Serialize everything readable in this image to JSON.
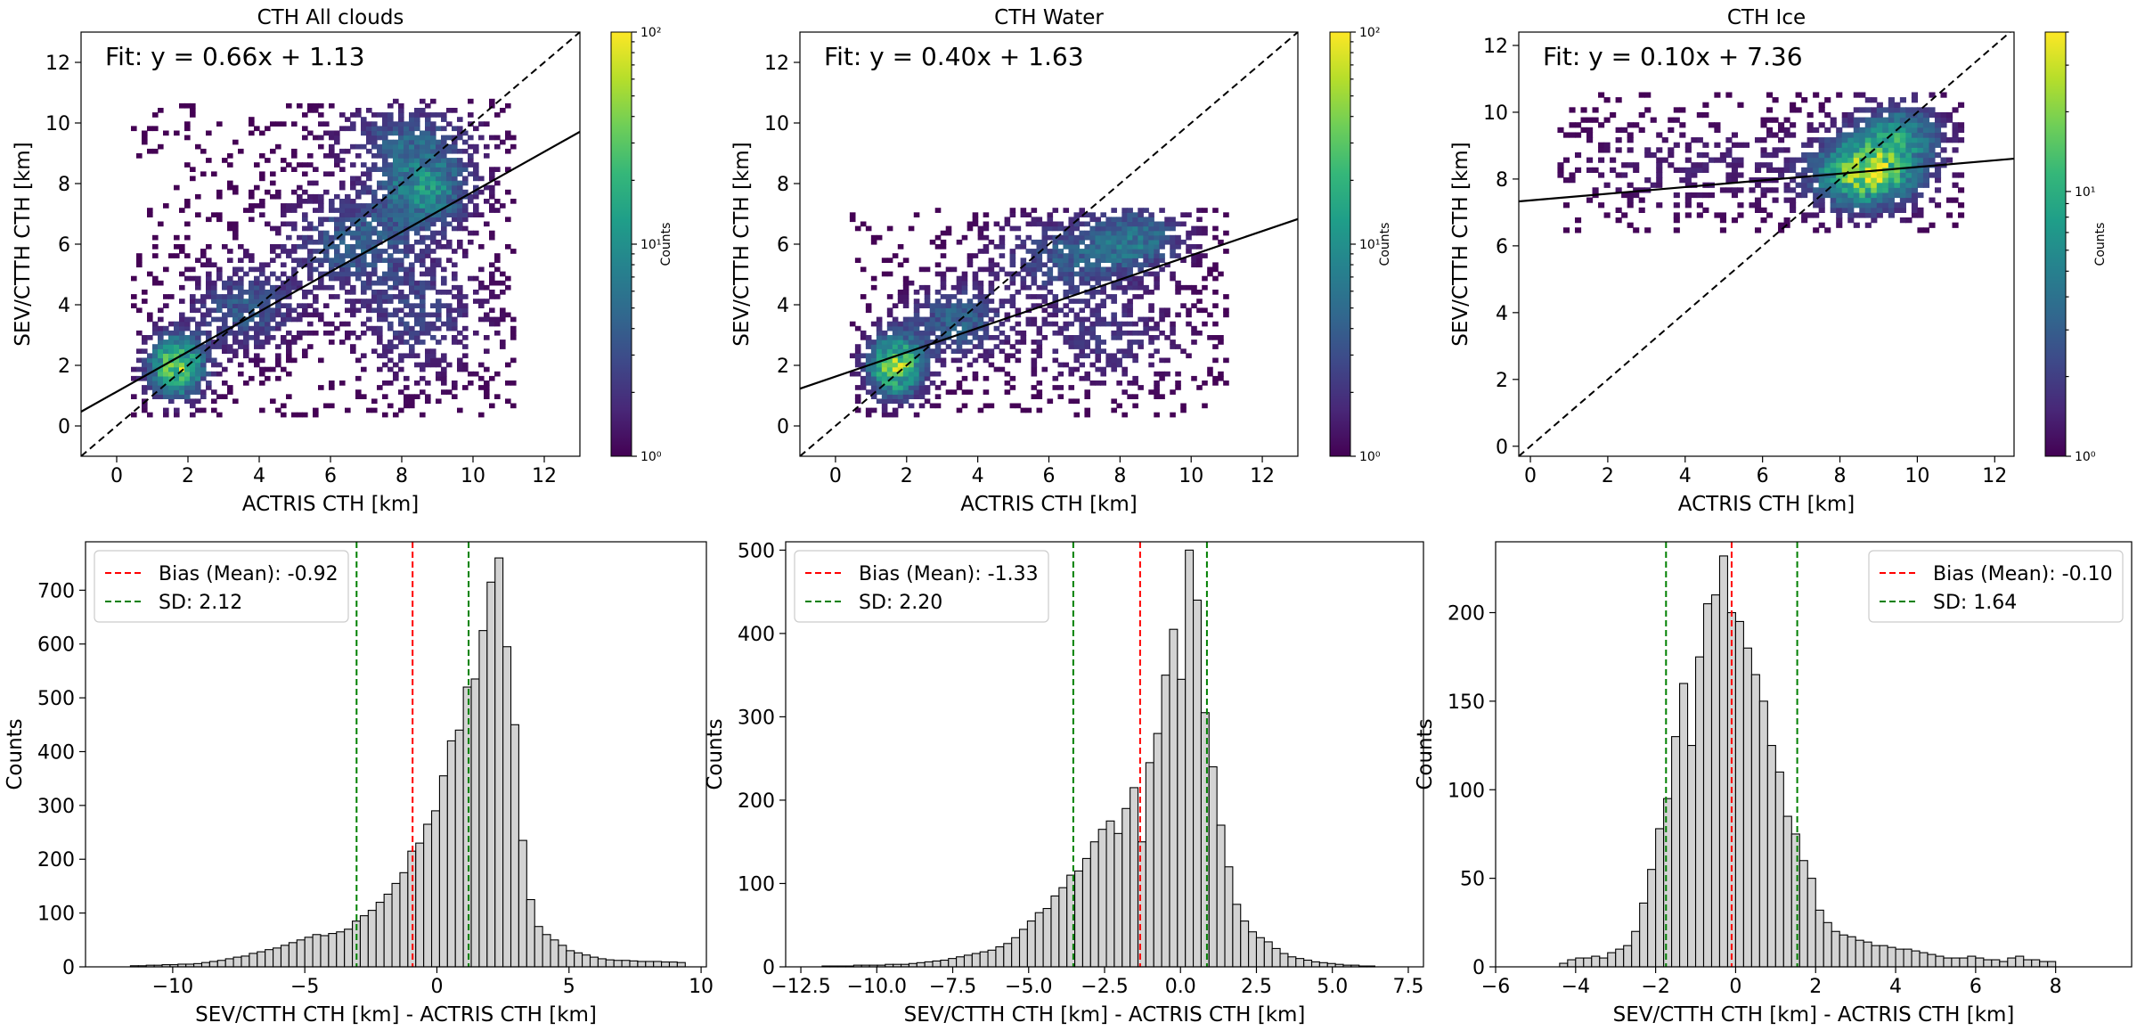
{
  "colormap": [
    "#440154",
    "#482878",
    "#3e4989",
    "#31688e",
    "#26828e",
    "#1f9e89",
    "#35b779",
    "#6ece58",
    "#b5de2b",
    "#fde725"
  ],
  "chart_data": [
    {
      "type": "heatmap",
      "title": "CTH All clouds",
      "xlabel": "ACTRIS CTH [km]",
      "ylabel": "SEV/CTTH CTH [km]",
      "xlim": [
        -1,
        13
      ],
      "ylim": [
        -1,
        13
      ],
      "xticks": [
        0,
        2,
        4,
        6,
        8,
        10,
        12
      ],
      "yticks": [
        0,
        2,
        4,
        6,
        8,
        10,
        12
      ],
      "fit_text": "Fit: y = 0.66x + 1.13",
      "fit": {
        "slope": 0.66,
        "intercept": 1.13
      },
      "one_to_one_line": true,
      "colorbar": {
        "label": "Counts",
        "scale": "log",
        "range": [
          1,
          100
        ],
        "tick_labels": [
          "10⁰",
          "10¹",
          "10²"
        ]
      },
      "density_clusters": [
        {
          "x": 1.6,
          "y": 1.9,
          "sx": 0.55,
          "sy": 0.7,
          "w": 1.0
        },
        {
          "x": 3.5,
          "y": 3.8,
          "sx": 1.0,
          "sy": 0.9,
          "w": 0.35
        },
        {
          "x": 6.5,
          "y": 6.0,
          "sx": 1.3,
          "sy": 1.1,
          "w": 0.35
        },
        {
          "x": 8.6,
          "y": 7.8,
          "sx": 0.9,
          "sy": 0.9,
          "w": 0.6
        },
        {
          "x": 8.5,
          "y": 3.5,
          "sx": 1.2,
          "sy": 1.3,
          "w": 0.25
        },
        {
          "x": 8.0,
          "y": 9.5,
          "sx": 1.3,
          "sy": 0.7,
          "w": 0.3
        }
      ],
      "data_extent": {
        "x": [
          0.4,
          11.2
        ],
        "y": [
          0.3,
          10.8
        ]
      }
    },
    {
      "type": "heatmap",
      "title": "CTH Water",
      "xlabel": "ACTRIS CTH [km]",
      "ylabel": "SEV/CTTH CTH [km]",
      "xlim": [
        -1,
        13
      ],
      "ylim": [
        -1,
        13
      ],
      "xticks": [
        0,
        2,
        4,
        6,
        8,
        10,
        12
      ],
      "yticks": [
        0,
        2,
        4,
        6,
        8,
        10,
        12
      ],
      "fit_text": "Fit: y = 0.40x + 1.63",
      "fit": {
        "slope": 0.4,
        "intercept": 1.63
      },
      "one_to_one_line": true,
      "colorbar": {
        "label": "Counts",
        "scale": "log",
        "range": [
          1,
          100
        ],
        "tick_labels": [
          "10⁰",
          "10¹",
          "10²"
        ]
      },
      "density_clusters": [
        {
          "x": 1.6,
          "y": 1.9,
          "sx": 0.55,
          "sy": 0.7,
          "w": 1.0
        },
        {
          "x": 3.3,
          "y": 3.4,
          "sx": 0.9,
          "sy": 0.8,
          "w": 0.4
        },
        {
          "x": 6.5,
          "y": 5.5,
          "sx": 1.4,
          "sy": 0.9,
          "w": 0.35
        },
        {
          "x": 8.5,
          "y": 6.2,
          "sx": 0.9,
          "sy": 0.7,
          "w": 0.4
        },
        {
          "x": 7.5,
          "y": 2.8,
          "sx": 1.5,
          "sy": 1.0,
          "w": 0.2
        }
      ],
      "data_extent": {
        "x": [
          0.4,
          11.0
        ],
        "y": [
          0.3,
          7.2
        ]
      }
    },
    {
      "type": "heatmap",
      "title": "CTH Ice",
      "xlabel": "ACTRIS CTH [km]",
      "ylabel": "SEV/CTTH CTH [km]",
      "xlim": [
        -0.3,
        12.5
      ],
      "ylim": [
        -0.3,
        12.4
      ],
      "xticks": [
        0,
        2,
        4,
        6,
        8,
        10,
        12
      ],
      "yticks": [
        0,
        2,
        4,
        6,
        8,
        10,
        12
      ],
      "fit_text": "Fit: y = 0.10x + 7.36",
      "fit": {
        "slope": 0.1,
        "intercept": 7.36
      },
      "one_to_one_line": true,
      "colorbar": {
        "label": "Counts",
        "scale": "log",
        "range": [
          1,
          40
        ],
        "tick_labels": [
          "10⁰",
          "10¹"
        ]
      },
      "density_clusters": [
        {
          "x": 8.6,
          "y": 8.1,
          "sx": 0.9,
          "sy": 0.7,
          "w": 1.0
        },
        {
          "x": 9.5,
          "y": 9.3,
          "sx": 0.8,
          "sy": 0.7,
          "w": 0.5
        },
        {
          "x": 4.5,
          "y": 8.3,
          "sx": 2.3,
          "sy": 0.9,
          "w": 0.12
        }
      ],
      "data_extent": {
        "x": [
          0.7,
          11.2
        ],
        "y": [
          6.4,
          10.6
        ]
      }
    },
    {
      "type": "bar",
      "subtype": "histogram",
      "xlabel": "SEV/CTTH CTH [km] - ACTRIS CTH [km]",
      "ylabel": "Counts",
      "xlim": [
        -13.3,
        10.2
      ],
      "ylim": [
        0,
        790
      ],
      "xticks": [
        -10,
        -5,
        0,
        5,
        10
      ],
      "xtick_labels": [
        "−10",
        "−5",
        "0",
        "5",
        "10"
      ],
      "yticks": [
        0,
        100,
        200,
        300,
        400,
        500,
        600,
        700
      ],
      "bin_start": -11.6,
      "bin_width": 0.3,
      "values": [
        2,
        2,
        3,
        3,
        4,
        4,
        5,
        5,
        6,
        8,
        10,
        12,
        15,
        18,
        20,
        25,
        28,
        32,
        35,
        40,
        45,
        50,
        55,
        60,
        58,
        62,
        65,
        70,
        85,
        95,
        105,
        120,
        135,
        155,
        175,
        215,
        230,
        265,
        290,
        355,
        420,
        440,
        520,
        535,
        625,
        715,
        760,
        595,
        450,
        235,
        125,
        75,
        60,
        50,
        40,
        30,
        26,
        22,
        18,
        15,
        13,
        12,
        12,
        11,
        10,
        10,
        10,
        9,
        9,
        8
      ],
      "vlines": [
        {
          "name": "Bias (Mean): -0.92",
          "x": -0.92,
          "color": "#ff0000"
        },
        {
          "name": "SD: 2.12",
          "x": -3.04,
          "color": "#008000"
        },
        {
          "name": "",
          "x": 1.2,
          "color": "#008000"
        }
      ],
      "legend": {
        "position": "top-left",
        "entries": [
          "Bias (Mean): -0.92",
          "SD: 2.12"
        ]
      }
    },
    {
      "type": "bar",
      "subtype": "histogram",
      "xlabel": "SEV/CTTH CTH [km] - ACTRIS CTH [km]",
      "ylabel": "Counts",
      "xlim": [
        -13.0,
        8.0
      ],
      "ylim": [
        0,
        510
      ],
      "xticks": [
        -12.5,
        -10.0,
        -7.5,
        -5.0,
        -2.5,
        0.0,
        2.5,
        5.0,
        7.5
      ],
      "xtick_labels": [
        "−12.5",
        "−10.0",
        "−7.5",
        "−5.0",
        "−2.5",
        "0.0",
        "2.5",
        "5.0",
        "7.5"
      ],
      "yticks": [
        0,
        100,
        200,
        300,
        400,
        500
      ],
      "bin_start": -11.8,
      "bin_width": 0.26,
      "values": [
        1,
        1,
        1,
        1,
        2,
        2,
        2,
        2,
        3,
        3,
        3,
        4,
        5,
        6,
        7,
        8,
        10,
        12,
        14,
        16,
        18,
        20,
        24,
        28,
        35,
        45,
        55,
        65,
        70,
        85,
        95,
        110,
        115,
        130,
        150,
        165,
        175,
        160,
        190,
        215,
        150,
        245,
        280,
        350,
        405,
        345,
        500,
        440,
        305,
        240,
        170,
        120,
        75,
        55,
        42,
        35,
        30,
        22,
        16,
        12,
        10,
        8,
        6,
        5,
        4,
        3,
        2,
        2,
        1,
        1
      ],
      "vlines": [
        {
          "name": "Bias (Mean): -1.33",
          "x": -1.33,
          "color": "#ff0000"
        },
        {
          "name": "SD: 2.20",
          "x": -3.53,
          "color": "#008000"
        },
        {
          "name": "",
          "x": 0.87,
          "color": "#008000"
        }
      ],
      "legend": {
        "position": "top-left",
        "entries": [
          "Bias (Mean): -1.33",
          "SD: 2.20"
        ]
      }
    },
    {
      "type": "bar",
      "subtype": "histogram",
      "xlabel": "SEV/CTTH CTH [km] - ACTRIS CTH [km]",
      "ylabel": "Counts",
      "xlim": [
        -6.0,
        9.9
      ],
      "ylim": [
        0,
        240
      ],
      "xticks": [
        -6,
        -4,
        -2,
        0,
        2,
        4,
        6,
        8
      ],
      "xtick_labels": [
        "−6",
        "−4",
        "−2",
        "0",
        "2",
        "4",
        "6",
        "8"
      ],
      "yticks": [
        0,
        50,
        100,
        150,
        200
      ],
      "bin_start": -4.4,
      "bin_width": 0.2,
      "values": [
        2,
        4,
        5,
        5,
        6,
        5,
        8,
        10,
        12,
        20,
        36,
        55,
        78,
        95,
        130,
        160,
        125,
        175,
        205,
        210,
        232,
        200,
        195,
        180,
        165,
        150,
        125,
        110,
        85,
        75,
        60,
        50,
        32,
        25,
        20,
        18,
        17,
        15,
        14,
        12,
        12,
        11,
        10,
        10,
        9,
        8,
        7,
        6,
        5,
        5,
        5,
        6,
        5,
        4,
        4,
        3,
        5,
        6,
        4,
        4,
        3,
        3
      ],
      "vlines": [
        {
          "name": "Bias (Mean): -0.10",
          "x": -0.1,
          "color": "#ff0000"
        },
        {
          "name": "SD: 1.64",
          "x": -1.74,
          "color": "#008000"
        },
        {
          "name": "",
          "x": 1.54,
          "color": "#008000"
        }
      ],
      "legend": {
        "position": "top-right",
        "entries": [
          "Bias (Mean): -0.10",
          "SD: 1.64"
        ]
      }
    }
  ]
}
